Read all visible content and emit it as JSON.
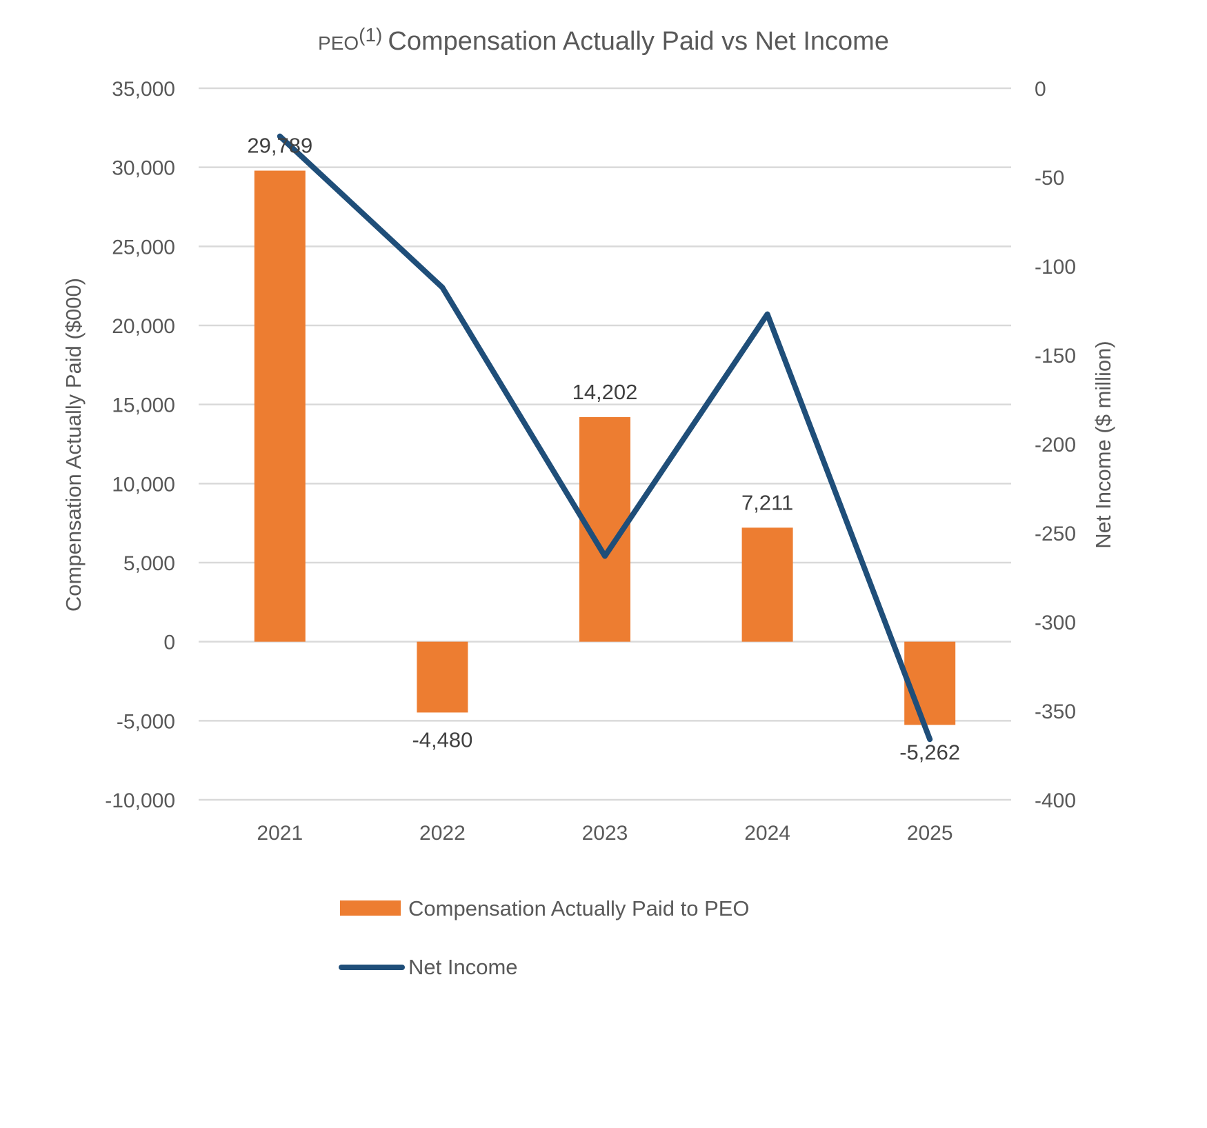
{
  "chart_data": {
    "type": "bar",
    "title": {
      "prefix": "PEO",
      "superscript": "(1)",
      "main": "Compensation Actually Paid vs Net Income"
    },
    "categories": [
      "2021",
      "2022",
      "2023",
      "2024",
      "2025"
    ],
    "series": [
      {
        "name": "Compensation Actually Paid to PEO",
        "type": "bar",
        "axis": "left",
        "color": "#ED7D31",
        "values": [
          29789,
          -4480,
          14202,
          7211,
          -5262
        ],
        "labels": [
          "29,789",
          "-4,480",
          "14,202",
          "7,211",
          "-5,262"
        ]
      },
      {
        "name": "Net Income",
        "type": "line",
        "axis": "right",
        "color": "#1F4E79",
        "values": [
          -27,
          -112,
          -263,
          -127,
          -366
        ]
      }
    ],
    "y_left": {
      "label": "Compensation Actually Paid ($000)",
      "range": [
        -10000,
        35000
      ],
      "ticks": [
        35000,
        30000,
        25000,
        20000,
        15000,
        10000,
        5000,
        0,
        -5000,
        -10000
      ],
      "tick_labels": [
        "35,000",
        "30,000",
        "25,000",
        "20,000",
        "15,000",
        "10,000",
        "5,000",
        "0",
        "-5,000",
        "-10,000"
      ]
    },
    "y_right": {
      "label": "Net Income ($ million)",
      "range": [
        -400,
        0
      ],
      "ticks": [
        0,
        -50,
        -100,
        -150,
        -200,
        -250,
        -300,
        -350,
        -400
      ],
      "tick_labels": [
        "0",
        "-50",
        "-100",
        "-150",
        "-200",
        "-250",
        "-300",
        "-350",
        "-400"
      ]
    },
    "grid": true,
    "legend": "bottom"
  }
}
